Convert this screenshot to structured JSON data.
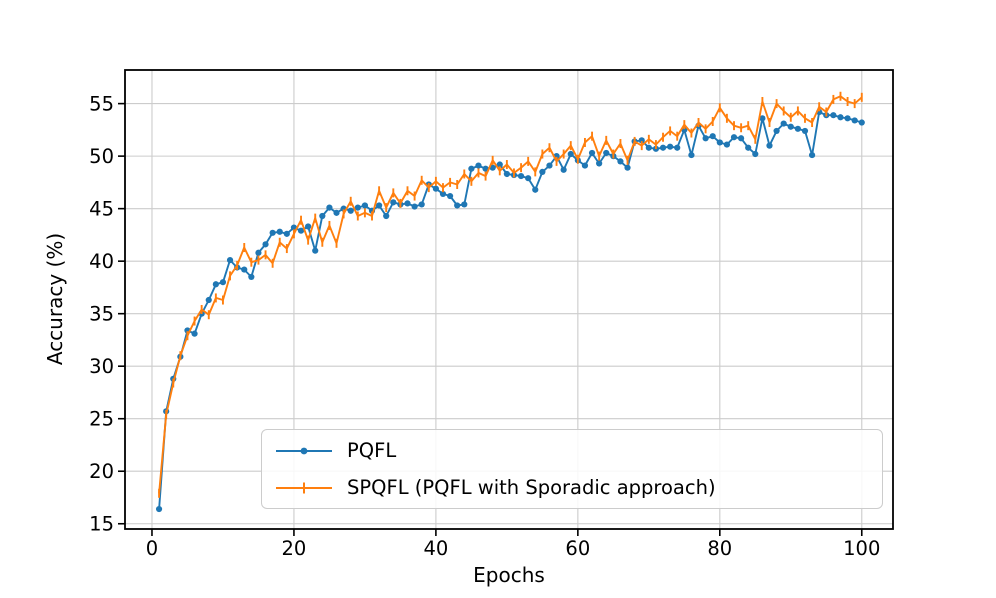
{
  "chart_data": {
    "type": "line",
    "title": "",
    "xlabel": "Epochs",
    "ylabel": "Accuracy (%)",
    "xlim": [
      -3.8,
      104.4
    ],
    "ylim": [
      14.5,
      58.2
    ],
    "xticks": [
      0,
      20,
      40,
      60,
      80,
      100
    ],
    "yticks": [
      15,
      20,
      25,
      30,
      35,
      40,
      45,
      50,
      55
    ],
    "grid": true,
    "grid_color": "#cccccc",
    "legend_position": "lower-center-inside",
    "x": [
      1,
      2,
      3,
      4,
      5,
      6,
      7,
      8,
      9,
      10,
      11,
      12,
      13,
      14,
      15,
      16,
      17,
      18,
      19,
      20,
      21,
      22,
      23,
      24,
      25,
      26,
      27,
      28,
      29,
      30,
      31,
      32,
      33,
      34,
      35,
      36,
      37,
      38,
      39,
      40,
      41,
      42,
      43,
      44,
      45,
      46,
      47,
      48,
      49,
      50,
      51,
      52,
      53,
      54,
      55,
      56,
      57,
      58,
      59,
      60,
      61,
      62,
      63,
      64,
      65,
      66,
      67,
      68,
      69,
      70,
      71,
      72,
      73,
      74,
      75,
      76,
      77,
      78,
      79,
      80,
      81,
      82,
      83,
      84,
      85,
      86,
      87,
      88,
      89,
      90,
      91,
      92,
      93,
      94,
      95,
      96,
      97,
      98,
      99,
      100
    ],
    "series": [
      {
        "name": "PQFL",
        "color": "#1f77b4",
        "marker": "circle",
        "values": [
          16.4,
          25.7,
          28.8,
          30.9,
          33.4,
          33.1,
          35.0,
          36.3,
          37.8,
          38.0,
          40.1,
          39.4,
          39.2,
          38.5,
          40.8,
          41.6,
          42.7,
          42.8,
          42.6,
          43.2,
          42.9,
          43.3,
          41.0,
          44.3,
          45.1,
          44.6,
          45.0,
          44.8,
          45.1,
          45.3,
          44.8,
          45.3,
          44.3,
          45.6,
          45.4,
          45.5,
          45.2,
          45.4,
          47.3,
          46.9,
          46.4,
          46.2,
          45.3,
          45.4,
          48.8,
          49.1,
          48.8,
          48.9,
          49.2,
          48.3,
          48.2,
          48.1,
          47.9,
          46.8,
          48.5,
          49.1,
          50.0,
          48.7,
          50.2,
          49.6,
          49.1,
          50.3,
          49.3,
          50.3,
          50.0,
          49.5,
          48.9,
          51.4,
          51.5,
          50.8,
          50.7,
          50.8,
          50.9,
          50.8,
          52.5,
          50.1,
          52.9,
          51.7,
          51.9,
          51.3,
          51.1,
          51.8,
          51.7,
          50.8,
          50.2,
          53.6,
          51.0,
          52.4,
          53.1,
          52.8,
          52.6,
          52.4,
          50.1,
          54.2,
          53.9,
          53.9,
          53.7,
          53.6,
          53.4,
          53.2
        ]
      },
      {
        "name": "SPQFL (PQFL with Sporadic approach)",
        "color": "#ff7f0e",
        "marker": "vline",
        "values": [
          17.9,
          25.4,
          28.4,
          31.0,
          32.9,
          34.3,
          35.4,
          34.9,
          36.5,
          36.3,
          38.6,
          39.6,
          41.3,
          39.9,
          40.1,
          40.6,
          39.8,
          41.8,
          41.2,
          42.6,
          43.9,
          42.0,
          44.1,
          41.8,
          43.4,
          41.7,
          44.5,
          45.7,
          44.3,
          44.6,
          44.3,
          46.7,
          45.1,
          46.5,
          45.5,
          46.7,
          46.2,
          47.7,
          47.0,
          47.6,
          47.0,
          47.5,
          47.3,
          48.3,
          47.6,
          48.4,
          48.1,
          49.6,
          48.6,
          49.2,
          48.4,
          48.9,
          49.5,
          48.5,
          50.2,
          50.8,
          49.5,
          50.2,
          51.0,
          49.7,
          51.3,
          51.9,
          50.0,
          51.5,
          50.2,
          51.2,
          49.6,
          51.4,
          51.0,
          51.6,
          51.1,
          51.8,
          52.4,
          51.9,
          53.0,
          52.2,
          53.2,
          52.6,
          53.3,
          54.6,
          53.6,
          52.9,
          52.7,
          52.9,
          51.6,
          55.2,
          53.2,
          55.0,
          54.3,
          53.7,
          54.3,
          53.6,
          53.2,
          54.7,
          54.2,
          55.4,
          55.7,
          55.2,
          55.0,
          55.6
        ]
      }
    ]
  },
  "legend": {
    "item1": "PQFL",
    "item2": "SPQFL (PQFL with Sporadic approach)"
  },
  "colors": {
    "pqfl": "#1f77b4",
    "spqfl": "#ff7f0e",
    "grid": "#cccccc",
    "axis": "#000000"
  }
}
